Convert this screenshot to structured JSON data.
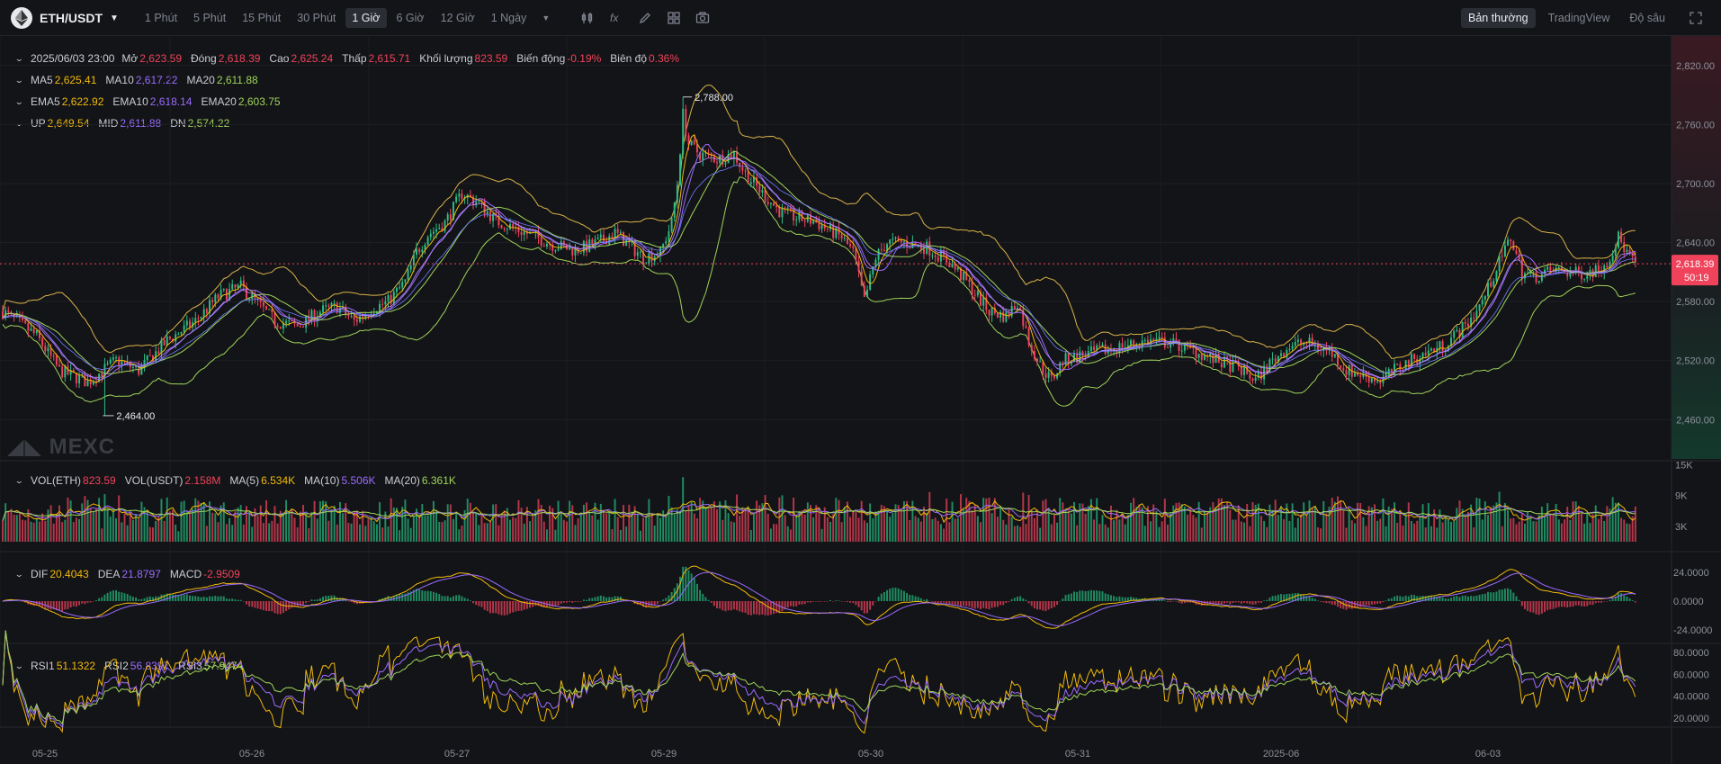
{
  "toolbar": {
    "pair": "ETH/USDT",
    "intervals": [
      "1 Phút",
      "5 Phút",
      "15 Phút",
      "30 Phút",
      "1 Giờ",
      "6 Giờ",
      "12 Giờ",
      "1 Ngày"
    ],
    "active_interval": "1 Giờ",
    "views": [
      "Bản thường",
      "TradingView",
      "Độ sâu"
    ],
    "active_view": "Bản thường",
    "tools": [
      "indicator-icon",
      "formula-icon",
      "draw-icon",
      "layout-icon",
      "camera-icon"
    ]
  },
  "ohlc": {
    "date": "2025/06/03 23:00",
    "open_label": "Mở",
    "open": "2,623.59",
    "close_label": "Đóng",
    "close": "2,618.39",
    "high_label": "Cao",
    "high": "2,625.24",
    "low_label": "Thấp",
    "low": "2,615.71",
    "vol_label": "Khối lượng",
    "vol": "823.59",
    "chg_label": "Biến động",
    "chg": "-0.19%",
    "amp_label": "Biên độ",
    "amp": "0.36%"
  },
  "ma": {
    "l1": "MA5",
    "v1": "2,625.41",
    "l2": "MA10",
    "v2": "2,617.22",
    "l3": "MA20",
    "v3": "2,611.88"
  },
  "ema": {
    "l1": "EMA5",
    "v1": "2,622.92",
    "l2": "EMA10",
    "v2": "2,618.14",
    "l3": "EMA20",
    "v3": "2,603.75"
  },
  "boll": {
    "l1": "UP",
    "v1": "2,649.54",
    "l2": "MID",
    "v2": "2,611.88",
    "l3": "DN",
    "v3": "2,574.22"
  },
  "vol_legend": {
    "l1": "VOL(ETH)",
    "v1": "823.59",
    "l2": "VOL(USDT)",
    "v2": "2.158M",
    "l3": "MA(5)",
    "v3": "6.534K",
    "l4": "MA(10)",
    "v4": "5.506K",
    "l5": "MA(20)",
    "v5": "6.361K"
  },
  "macd_legend": {
    "l1": "DIF",
    "v1": "20.4043",
    "l2": "DEA",
    "v2": "21.8797",
    "l3": "MACD",
    "v3": "-2.9509"
  },
  "rsi_legend": {
    "l1": "RSI1",
    "v1": "51.1322",
    "l2": "RSI2",
    "v2": "56.8397",
    "l3": "RSI3",
    "v3": "57.9474"
  },
  "watermark": "MEXC",
  "chart_data": {
    "type": "candlestick",
    "x_ticks": [
      "05-25",
      "05-26",
      "05-27",
      "05-29",
      "05-30",
      "05-31",
      "2025-06",
      "06-03"
    ],
    "price_axis": {
      "ticks": [
        "2,820.00",
        "2,760.00",
        "2,700.00",
        "2,640.00",
        "2,580.00",
        "2,520.00",
        "2,460.00"
      ],
      "ylim": [
        2420,
        2850
      ]
    },
    "last_price": "2,618.39",
    "countdown": "50:19",
    "high_marker": "2,788.00",
    "low_marker": "2,464.00",
    "volume_axis": {
      "ticks": [
        "15K",
        "9K",
        "3K"
      ]
    },
    "macd_axis": {
      "ticks": [
        "24.0000",
        "0.0000",
        "-24.0000"
      ]
    },
    "rsi_axis": {
      "ticks": [
        "80.0000",
        "60.0000",
        "40.0000",
        "20.0000"
      ]
    },
    "price_path": [
      [
        0,
        2570
      ],
      [
        12,
        2545
      ],
      [
        20,
        2510
      ],
      [
        30,
        2498
      ],
      [
        40,
        2520
      ],
      [
        48,
        2510
      ],
      [
        58,
        2540
      ],
      [
        68,
        2560
      ],
      [
        76,
        2585
      ],
      [
        84,
        2595
      ],
      [
        90,
        2578
      ],
      [
        96,
        2560
      ],
      [
        104,
        2555
      ],
      [
        112,
        2570
      ],
      [
        118,
        2575
      ],
      [
        124,
        2560
      ],
      [
        130,
        2572
      ],
      [
        136,
        2580
      ],
      [
        142,
        2600
      ],
      [
        146,
        2630
      ],
      [
        150,
        2648
      ],
      [
        156,
        2660
      ],
      [
        162,
        2690
      ],
      [
        168,
        2680
      ],
      [
        174,
        2662
      ],
      [
        180,
        2655
      ],
      [
        186,
        2648
      ],
      [
        194,
        2638
      ],
      [
        202,
        2632
      ],
      [
        210,
        2640
      ],
      [
        216,
        2650
      ],
      [
        220,
        2640
      ],
      [
        226,
        2625
      ],
      [
        232,
        2630
      ],
      [
        236,
        2660
      ],
      [
        238,
        2700
      ],
      [
        240,
        2770
      ],
      [
        242,
        2740
      ],
      [
        246,
        2730
      ],
      [
        252,
        2725
      ],
      [
        258,
        2730
      ],
      [
        262,
        2710
      ],
      [
        268,
        2690
      ],
      [
        274,
        2672
      ],
      [
        280,
        2665
      ],
      [
        286,
        2662
      ],
      [
        292,
        2652
      ],
      [
        296,
        2645
      ],
      [
        300,
        2630
      ],
      [
        304,
        2580
      ],
      [
        308,
        2625
      ],
      [
        312,
        2640
      ],
      [
        318,
        2640
      ],
      [
        326,
        2635
      ],
      [
        334,
        2620
      ],
      [
        340,
        2600
      ],
      [
        348,
        2570
      ],
      [
        354,
        2565
      ],
      [
        358,
        2580
      ],
      [
        362,
        2540
      ],
      [
        366,
        2515
      ],
      [
        370,
        2500
      ],
      [
        374,
        2520
      ],
      [
        380,
        2525
      ],
      [
        388,
        2530
      ],
      [
        396,
        2535
      ],
      [
        404,
        2540
      ],
      [
        412,
        2538
      ],
      [
        420,
        2530
      ],
      [
        428,
        2520
      ],
      [
        436,
        2512
      ],
      [
        442,
        2500
      ],
      [
        448,
        2520
      ],
      [
        454,
        2535
      ],
      [
        460,
        2538
      ],
      [
        468,
        2530
      ],
      [
        474,
        2510
      ],
      [
        480,
        2505
      ],
      [
        486,
        2500
      ],
      [
        492,
        2512
      ],
      [
        500,
        2525
      ],
      [
        508,
        2535
      ],
      [
        516,
        2555
      ],
      [
        522,
        2580
      ],
      [
        528,
        2620
      ],
      [
        532,
        2645
      ],
      [
        536,
        2610
      ],
      [
        540,
        2605
      ],
      [
        548,
        2612
      ],
      [
        556,
        2608
      ],
      [
        562,
        2612
      ],
      [
        566,
        2620
      ],
      [
        570,
        2645
      ],
      [
        574,
        2625
      ],
      [
        576,
        2618
      ]
    ]
  }
}
